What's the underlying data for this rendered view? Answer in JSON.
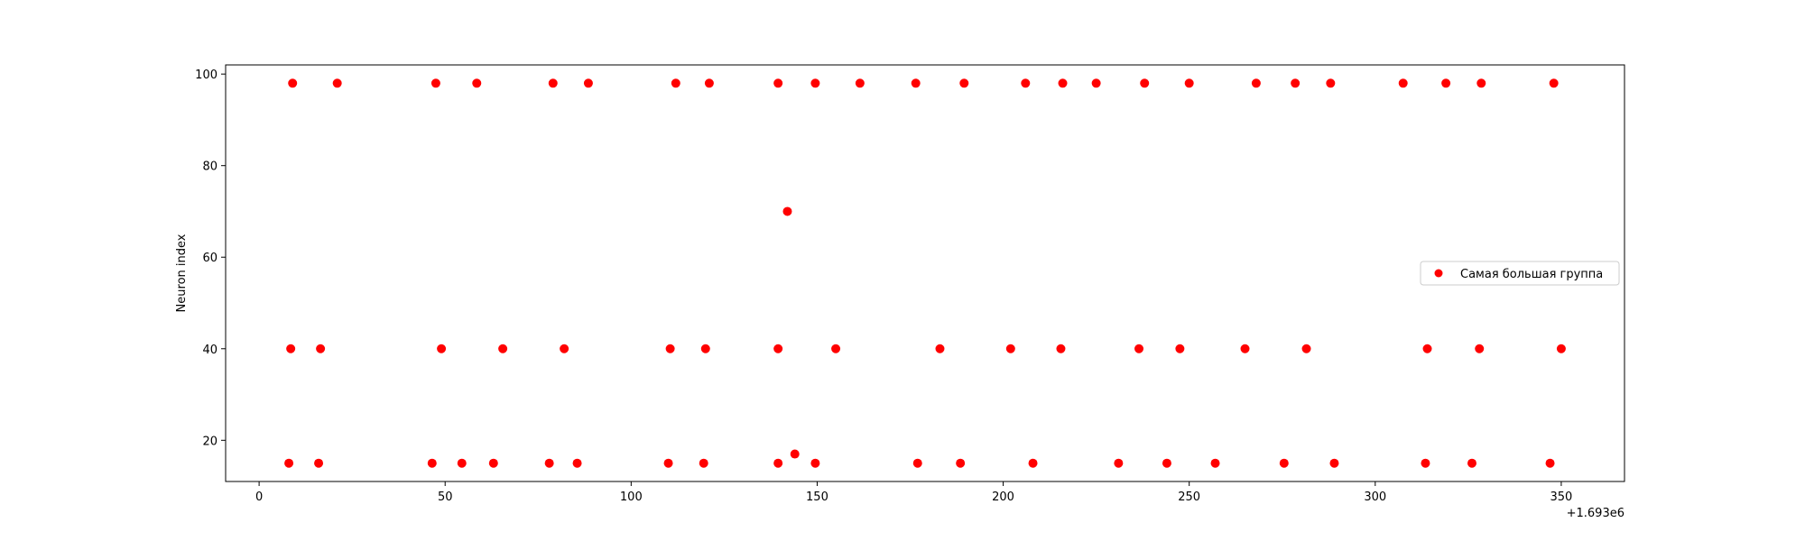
{
  "chart_data": {
    "type": "scatter",
    "title": "",
    "xlabel": "",
    "ylabel": "Neuron index",
    "x_offset_label": "+1.693e6",
    "xlim": [
      -9,
      367
    ],
    "ylim": [
      11,
      102
    ],
    "xticks": [
      0,
      50,
      100,
      150,
      200,
      250,
      300,
      350
    ],
    "xtick_labels": [
      "0",
      "50",
      "100",
      "150",
      "200",
      "250",
      "300",
      "350"
    ],
    "yticks": [
      20,
      40,
      60,
      80,
      100
    ],
    "ytick_labels": [
      "20",
      "40",
      "60",
      "80",
      "100"
    ],
    "grid": false,
    "legend_position": "center-right",
    "series": [
      {
        "name": "Самая большая группа",
        "color": "#ff0000",
        "marker": "circle",
        "points": [
          [
            9,
            98
          ],
          [
            21,
            98
          ],
          [
            47.5,
            98
          ],
          [
            58.5,
            98
          ],
          [
            79,
            98
          ],
          [
            88.5,
            98
          ],
          [
            112,
            98
          ],
          [
            121,
            98
          ],
          [
            139.5,
            98
          ],
          [
            149.5,
            98
          ],
          [
            161.5,
            98
          ],
          [
            176.5,
            98
          ],
          [
            189.5,
            98
          ],
          [
            206,
            98
          ],
          [
            216,
            98
          ],
          [
            225,
            98
          ],
          [
            238,
            98
          ],
          [
            250,
            98
          ],
          [
            268,
            98
          ],
          [
            278.5,
            98
          ],
          [
            288,
            98
          ],
          [
            307.5,
            98
          ],
          [
            319,
            98
          ],
          [
            328.5,
            98
          ],
          [
            348,
            98
          ],
          [
            142,
            70
          ],
          [
            8.5,
            40
          ],
          [
            16.5,
            40
          ],
          [
            49,
            40
          ],
          [
            65.5,
            40
          ],
          [
            82,
            40
          ],
          [
            110.5,
            40
          ],
          [
            120,
            40
          ],
          [
            139.5,
            40
          ],
          [
            155,
            40
          ],
          [
            183,
            40
          ],
          [
            202,
            40
          ],
          [
            215.5,
            40
          ],
          [
            236.5,
            40
          ],
          [
            247.5,
            40
          ],
          [
            265,
            40
          ],
          [
            281.5,
            40
          ],
          [
            314,
            40
          ],
          [
            328,
            40
          ],
          [
            350,
            40
          ],
          [
            144,
            17
          ],
          [
            8,
            15
          ],
          [
            16,
            15
          ],
          [
            46.5,
            15
          ],
          [
            54.5,
            15
          ],
          [
            63,
            15
          ],
          [
            78,
            15
          ],
          [
            85.5,
            15
          ],
          [
            110,
            15
          ],
          [
            119.5,
            15
          ],
          [
            139.5,
            15
          ],
          [
            149.5,
            15
          ],
          [
            177,
            15
          ],
          [
            188.5,
            15
          ],
          [
            208,
            15
          ],
          [
            231,
            15
          ],
          [
            244,
            15
          ],
          [
            257,
            15
          ],
          [
            275.5,
            15
          ],
          [
            289,
            15
          ],
          [
            313.5,
            15
          ],
          [
            326,
            15
          ],
          [
            347,
            15
          ]
        ]
      }
    ]
  }
}
